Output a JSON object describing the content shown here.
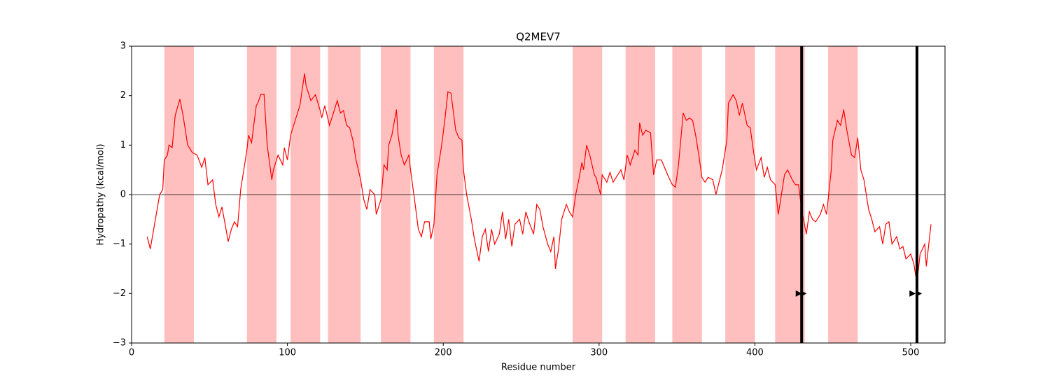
{
  "chart_data": {
    "type": "line",
    "title": "Q2MEV7",
    "xlabel": "Residue number",
    "ylabel": "Hydropathy (kcal/mol)",
    "xlim": [
      0,
      522
    ],
    "ylim": [
      -3,
      3
    ],
    "xticks": [
      0,
      100,
      200,
      300,
      400,
      500
    ],
    "yticks": [
      {
        "value": -3,
        "label": "−3"
      },
      {
        "value": -2,
        "label": "−2"
      },
      {
        "value": -1,
        "label": "−1"
      },
      0,
      1,
      2,
      3
    ],
    "color": "#ff0000",
    "region_color": "#ffbfbf",
    "regions": [
      [
        21,
        40
      ],
      [
        74,
        93
      ],
      [
        102,
        121
      ],
      [
        126,
        147
      ],
      [
        160,
        179
      ],
      [
        194,
        213
      ],
      [
        283,
        302
      ],
      [
        317,
        336
      ],
      [
        347,
        366
      ],
      [
        381,
        400
      ],
      [
        413,
        432
      ],
      [
        447,
        466
      ]
    ],
    "hline": 0,
    "vlines": [
      430,
      504
    ],
    "markers": {
      "x": [
        428,
        431,
        501,
        505
      ],
      "y": [
        -2,
        -2,
        -2,
        -2
      ]
    },
    "x": [
      10,
      12,
      18,
      20,
      21,
      23,
      24,
      26,
      28,
      31,
      33,
      36,
      39,
      42,
      45,
      47,
      49,
      52,
      54,
      56,
      58,
      60,
      62,
      64,
      66,
      68,
      70,
      72,
      74,
      75,
      77,
      80,
      81,
      83,
      85,
      87,
      90,
      91,
      94,
      97,
      98,
      100,
      102,
      105,
      108,
      111,
      112,
      115,
      118,
      121,
      122,
      124,
      127,
      129,
      132,
      134,
      136,
      138,
      140,
      142,
      144,
      147,
      149,
      151,
      153,
      156,
      157,
      160,
      162,
      164,
      165,
      167,
      170,
      171,
      173,
      175,
      178,
      179,
      182,
      184,
      186,
      188,
      191,
      192,
      194,
      196,
      199,
      201,
      203,
      205,
      208,
      210,
      212,
      213,
      215,
      218,
      220,
      223,
      225,
      227,
      229,
      231,
      233,
      236,
      238,
      240,
      242,
      244,
      246,
      249,
      251,
      253,
      255,
      258,
      260,
      262,
      264,
      267,
      269,
      271,
      272,
      274,
      276,
      279,
      281,
      283,
      285,
      287,
      289,
      290,
      292,
      294,
      297,
      298,
      301,
      302,
      305,
      307,
      309,
      311,
      314,
      316,
      318,
      320,
      323,
      325,
      326,
      328,
      330,
      333,
      335,
      337,
      340,
      342,
      344,
      347,
      349,
      351,
      354,
      356,
      358,
      360,
      362,
      364,
      366,
      368,
      370,
      373,
      375,
      377,
      379,
      382,
      383,
      386,
      388,
      390,
      392,
      395,
      397,
      399,
      401,
      404,
      406,
      408,
      410,
      413,
      415,
      417,
      419,
      421,
      424,
      426,
      428,
      430,
      433,
      435,
      437,
      439,
      442,
      444,
      446,
      449,
      450,
      453,
      455,
      457,
      459,
      462,
      464,
      466,
      468,
      470,
      473,
      475,
      477,
      480,
      482,
      484,
      486,
      488,
      491,
      493,
      495,
      497,
      500,
      502,
      504,
      506,
      509,
      510,
      513
    ],
    "values": [
      -0.85,
      -1.1,
      0.0,
      0.1,
      0.7,
      0.8,
      1.0,
      0.95,
      1.6,
      1.93,
      1.6,
      1.0,
      0.85,
      0.8,
      0.55,
      0.75,
      0.2,
      0.3,
      -0.2,
      -0.45,
      -0.25,
      -0.6,
      -0.95,
      -0.7,
      -0.55,
      -0.65,
      0.1,
      0.5,
      0.9,
      1.2,
      1.05,
      1.8,
      1.85,
      2.03,
      2.03,
      1.0,
      0.3,
      0.5,
      0.8,
      0.6,
      0.95,
      0.7,
      1.2,
      1.5,
      1.8,
      2.45,
      2.2,
      1.9,
      2.02,
      1.7,
      1.55,
      1.8,
      1.4,
      1.6,
      1.9,
      1.65,
      1.7,
      1.4,
      1.35,
      1.1,
      0.7,
      0.3,
      -0.1,
      -0.3,
      0.1,
      0.0,
      -0.4,
      -0.1,
      0.6,
      0.5,
      1.0,
      1.2,
      1.72,
      1.2,
      0.8,
      0.6,
      0.8,
      0.5,
      -0.2,
      -0.7,
      -0.85,
      -0.55,
      -0.55,
      -0.9,
      -0.6,
      0.4,
      1.0,
      1.5,
      2.08,
      2.05,
      1.3,
      1.15,
      1.1,
      0.5,
      0.0,
      -0.5,
      -0.9,
      -1.35,
      -0.85,
      -0.7,
      -1.15,
      -0.7,
      -1.0,
      -0.8,
      -0.35,
      -0.9,
      -0.5,
      -1.05,
      -0.6,
      -0.5,
      -0.8,
      -0.35,
      -0.55,
      -0.8,
      -0.2,
      -0.3,
      -0.65,
      -1.0,
      -1.15,
      -0.85,
      -1.5,
      -1.1,
      -0.5,
      -0.2,
      -0.35,
      -0.45,
      0.0,
      0.3,
      0.65,
      0.5,
      1.0,
      0.8,
      0.4,
      0.35,
      0.0,
      0.4,
      0.25,
      0.45,
      0.25,
      0.35,
      0.5,
      0.3,
      0.8,
      0.6,
      0.9,
      0.8,
      1.45,
      1.2,
      1.3,
      1.25,
      0.4,
      0.7,
      0.7,
      0.55,
      0.4,
      0.2,
      0.15,
      0.6,
      1.65,
      1.5,
      1.55,
      1.5,
      1.2,
      0.8,
      0.35,
      0.25,
      0.35,
      0.3,
      0.0,
      0.25,
      0.5,
      1.1,
      1.85,
      2.02,
      1.9,
      1.6,
      1.85,
      1.4,
      1.35,
      0.9,
      0.5,
      0.75,
      0.35,
      0.55,
      0.3,
      0.2,
      -0.4,
      0.0,
      0.4,
      0.5,
      0.3,
      0.2,
      0.2,
      -0.3,
      -0.8,
      -0.35,
      -0.5,
      -0.55,
      -0.4,
      -0.2,
      -0.4,
      0.5,
      1.1,
      1.5,
      1.4,
      1.72,
      1.3,
      0.8,
      0.75,
      1.15,
      0.5,
      0.3,
      -0.3,
      -0.5,
      -0.75,
      -0.65,
      -1.0,
      -0.6,
      -0.55,
      -1.0,
      -0.85,
      -1.1,
      -1.05,
      -1.3,
      -1.2,
      -1.4,
      -1.8,
      -1.2,
      -1.0,
      -1.45,
      -0.6
    ]
  }
}
